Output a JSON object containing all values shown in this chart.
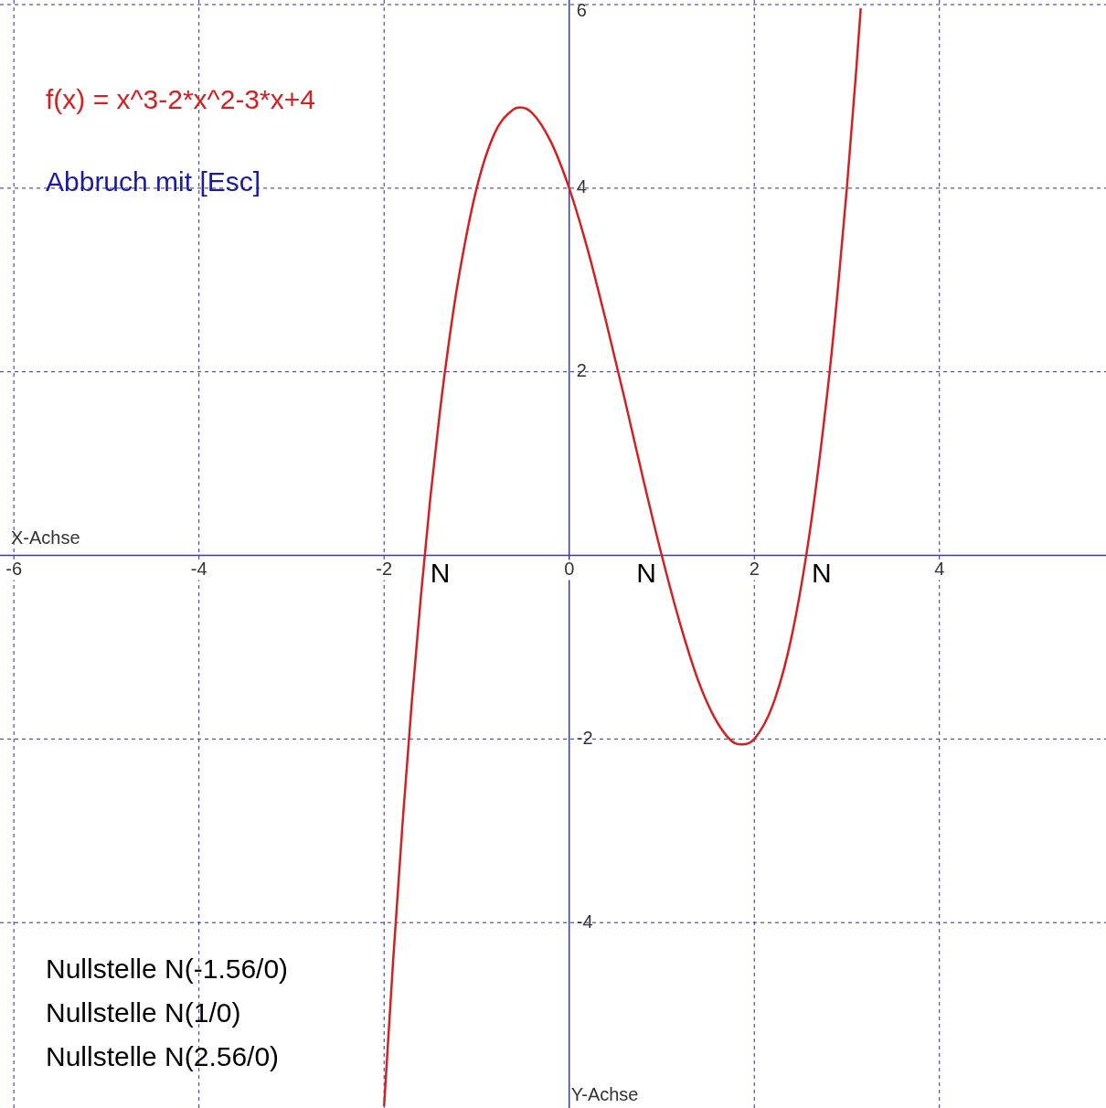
{
  "chart_data": {
    "type": "line",
    "title": "f(x) = x^3-2*x^2-3*x+4",
    "xlabel": "X-Achse",
    "ylabel": "Y-Achse",
    "xlim": [
      -6.15,
      5.8
    ],
    "ylim": [
      -6.02,
      6.05
    ],
    "xticks": [
      -6,
      -4,
      -2,
      0,
      2,
      4
    ],
    "yticks": [
      -4,
      -2,
      2,
      4,
      6
    ],
    "grid": true,
    "legend": false,
    "marker": "none",
    "line_style": "solid",
    "series": [
      {
        "color": "#d42020",
        "x": [
          -2,
          -1.9,
          -1.8,
          -1.7,
          -1.6,
          -1.5,
          -1.4,
          -1.3,
          -1.2,
          -1,
          -0.8,
          -0.6,
          -0.53,
          -0.4,
          -0.2,
          0,
          0.2,
          0.4,
          0.6,
          0.8,
          1,
          1.2,
          1.4,
          1.6,
          1.8,
          1.87,
          2,
          2.2,
          2.4,
          2.6,
          2.8,
          2.9,
          3,
          3.1,
          3.15
        ],
        "values": [
          -6,
          -4.38,
          -2.91,
          -1.59,
          -0.42,
          0.63,
          1.54,
          2.32,
          2.99,
          4,
          4.61,
          4.86,
          4.88,
          4.82,
          4.51,
          4,
          3.33,
          2.54,
          1.7,
          0.83,
          0,
          -0.75,
          -1.38,
          -1.82,
          -2.05,
          -2.06,
          -2,
          -1.63,
          -0.9,
          0.26,
          1.87,
          2.87,
          4,
          5.27,
          5.96
        ]
      }
    ],
    "annotations": [
      "Abbruch mit [Esc]",
      "Nullstelle N(-1.56/0)",
      "Nullstelle N(1/0)",
      "Nullstelle N(2.56/0)",
      {
        "text": "N",
        "x": -1.56,
        "y": 0
      },
      {
        "text": "N",
        "x": 1,
        "y": 0
      },
      {
        "text": "N",
        "x": 2.56,
        "y": 0
      }
    ]
  }
}
